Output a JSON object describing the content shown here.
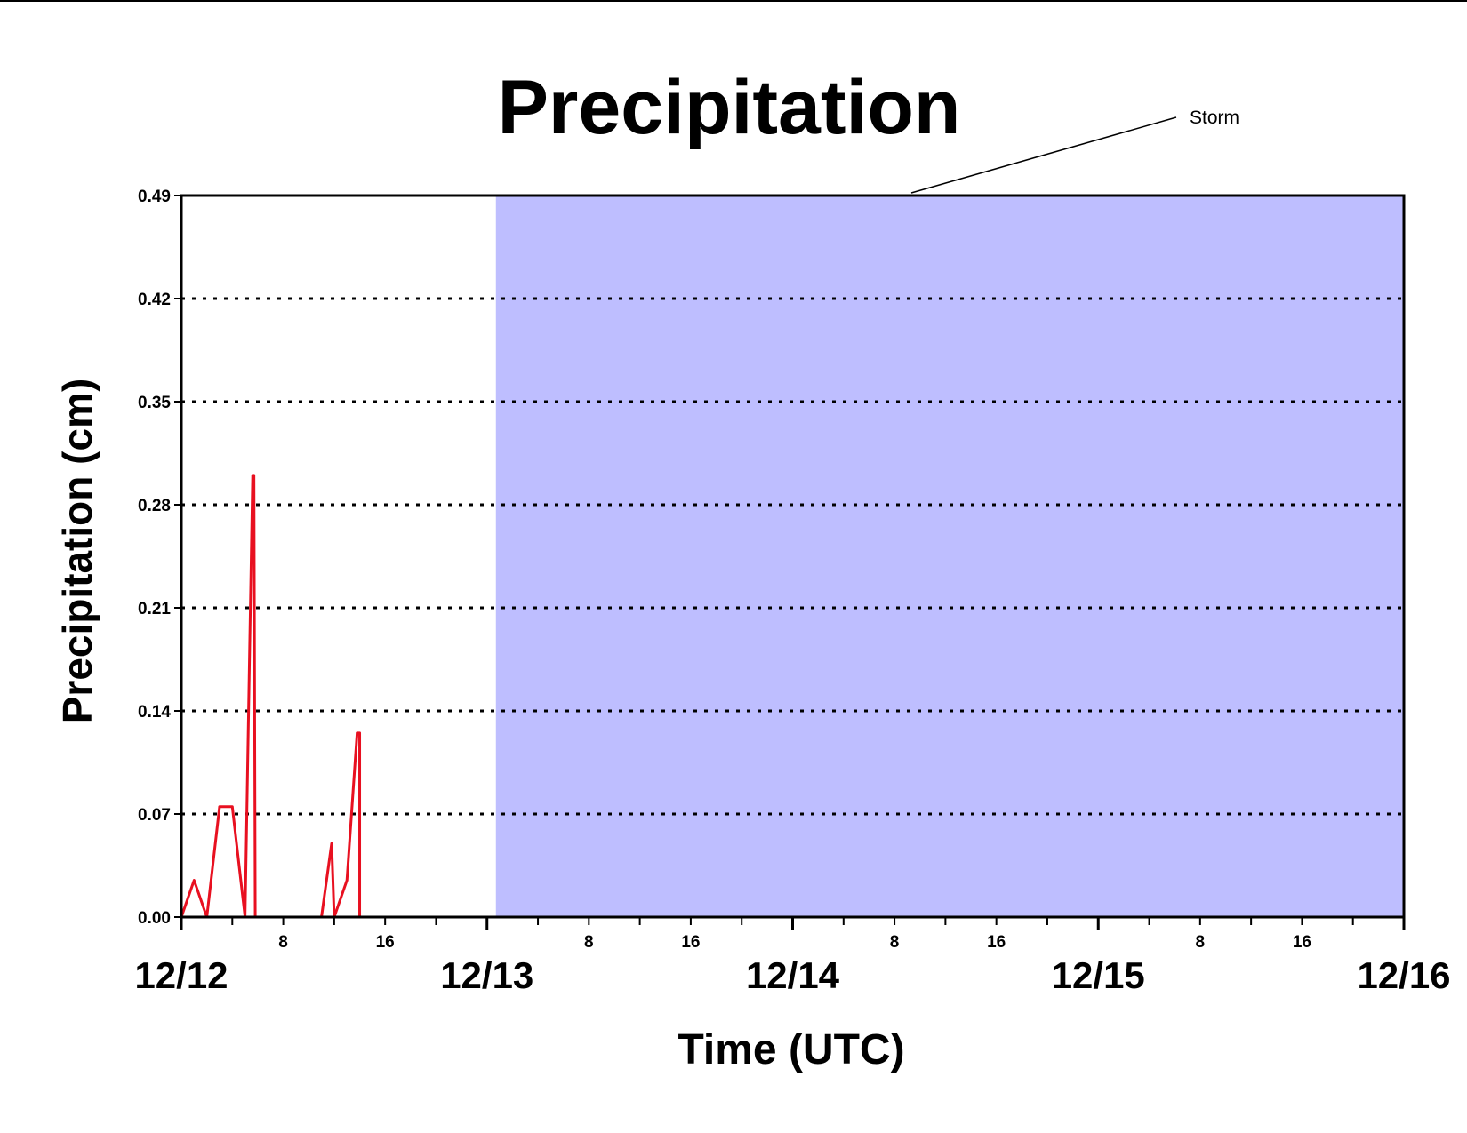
{
  "chart_data": {
    "type": "line",
    "title": "Precipitation",
    "xlabel": "Time (UTC)",
    "ylabel": "Precipitation (cm)",
    "ylim": [
      0,
      0.49
    ],
    "y_ticks": [
      "0.00",
      "0.07",
      "0.14",
      "0.21",
      "0.28",
      "0.35",
      "0.42",
      "0.49"
    ],
    "y_tick_values": [
      0,
      0.07,
      0.14,
      0.21,
      0.28,
      0.35,
      0.42,
      0.49
    ],
    "xlim_hours": [
      0,
      96
    ],
    "x_major_ticks": [
      {
        "label": "12/12",
        "hour": 0
      },
      {
        "label": "12/13",
        "hour": 24
      },
      {
        "label": "12/14",
        "hour": 48
      },
      {
        "label": "12/15",
        "hour": 72
      },
      {
        "label": "12/16",
        "hour": 96
      }
    ],
    "x_minor_labels": [
      {
        "label": "8",
        "hour": 8
      },
      {
        "label": "16",
        "hour": 16
      },
      {
        "label": "8",
        "hour": 32
      },
      {
        "label": "16",
        "hour": 40
      },
      {
        "label": "8",
        "hour": 56
      },
      {
        "label": "16",
        "hour": 64
      },
      {
        "label": "8",
        "hour": 80
      },
      {
        "label": "16",
        "hour": 88
      }
    ],
    "grid": "horizontal dotted",
    "annotation": {
      "text": "Storm",
      "shaded_hours": [
        24.7,
        96
      ]
    },
    "colors": {
      "line": "#e81020",
      "storm_line": "#c41348",
      "storm_fill": "#bebeff",
      "grid": "#000000"
    },
    "series": [
      {
        "x_hours": [
          0,
          1,
          2,
          3,
          4,
          4,
          5,
          5.6,
          5.7,
          5.8,
          6,
          11,
          11.8,
          12,
          13,
          13.8,
          14,
          14,
          96
        ],
        "values": [
          0,
          0.025,
          0,
          0.075,
          0.075,
          0.075,
          0,
          0.3,
          0.3,
          0,
          0,
          0,
          0.05,
          0,
          0.025,
          0.125,
          0.125,
          0,
          0
        ]
      }
    ]
  }
}
